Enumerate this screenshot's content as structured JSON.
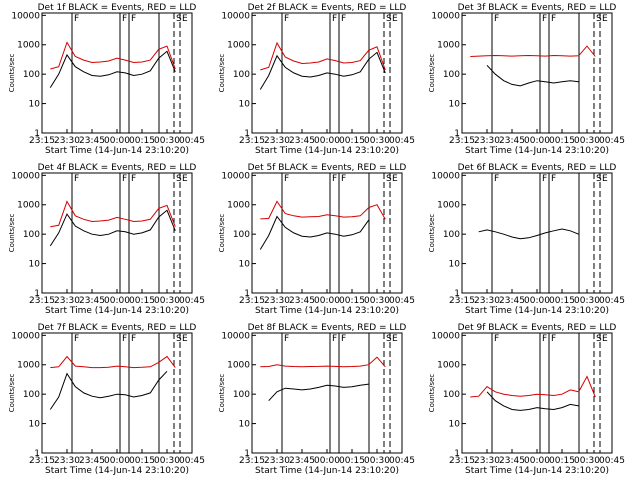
{
  "panel_template": {
    "title_suffix": "BLACK = Events, RED = LLD",
    "ylabel": "Counts/sec",
    "xlabel": "Start Time (14-Jun-14 23:10:20)",
    "y_ticks": [
      "1",
      "10",
      "100",
      "1000",
      "10000"
    ],
    "x_ticks": [
      "23:15",
      "23:30",
      "23:45",
      "00:00",
      "00:15",
      "00:30",
      "00:45"
    ],
    "top_marks": [
      "F",
      "F",
      "F",
      "S",
      "E"
    ]
  },
  "colors": {
    "events": "#000000",
    "lld": "#d40000",
    "axis": "#000000"
  },
  "chart_data": [
    {
      "type": "line",
      "title": "Det 1f BLACK = Events, RED = LLD",
      "x_minutes": [
        5,
        10,
        15,
        20,
        25,
        30,
        35,
        40,
        45,
        50,
        55,
        60,
        65,
        70,
        75,
        80
      ],
      "series": [
        {
          "name": "BLACK = Events",
          "values": [
            35,
            100,
            450,
            180,
            120,
            90,
            85,
            95,
            120,
            110,
            90,
            100,
            130,
            350,
            600,
            120
          ]
        },
        {
          "name": "RED = LLD",
          "values": [
            150,
            180,
            1200,
            400,
            300,
            250,
            260,
            280,
            350,
            300,
            250,
            260,
            300,
            700,
            900,
            150
          ]
        }
      ],
      "ylim": [
        1,
        12000
      ],
      "xlim": [
        0,
        90
      ],
      "log_y": true
    },
    {
      "type": "line",
      "title": "Det 2f BLACK = Events, RED = LLD",
      "x_minutes": [
        5,
        10,
        15,
        20,
        25,
        30,
        35,
        40,
        45,
        50,
        55,
        60,
        65,
        70,
        75,
        80
      ],
      "series": [
        {
          "name": "BLACK = Events",
          "values": [
            30,
            90,
            420,
            170,
            110,
            85,
            80,
            90,
            110,
            100,
            85,
            95,
            120,
            320,
            550,
            110
          ]
        },
        {
          "name": "RED = LLD",
          "values": [
            140,
            170,
            1150,
            380,
            280,
            230,
            240,
            260,
            330,
            290,
            240,
            250,
            290,
            650,
            850,
            140
          ]
        }
      ],
      "ylim": [
        1,
        12000
      ],
      "xlim": [
        0,
        90
      ],
      "log_y": true
    },
    {
      "type": "line",
      "title": "Det 3f BLACK = Events, RED = LLD",
      "x_minutes": [
        5,
        10,
        15,
        20,
        25,
        30,
        35,
        40,
        45,
        50,
        55,
        60,
        65,
        70,
        75,
        80
      ],
      "series": [
        {
          "name": "BLACK = Events",
          "values": [
            null,
            null,
            200,
            100,
            60,
            45,
            40,
            50,
            60,
            55,
            50,
            55,
            60,
            55,
            null,
            null
          ]
        },
        {
          "name": "RED = LLD",
          "values": [
            400,
            410,
            420,
            430,
            420,
            410,
            420,
            430,
            420,
            410,
            430,
            420,
            410,
            420,
            900,
            400
          ]
        }
      ],
      "ylim": [
        1,
        12000
      ],
      "xlim": [
        0,
        90
      ],
      "log_y": true
    },
    {
      "type": "line",
      "title": "Det 4f BLACK = Events, RED = LLD",
      "x_minutes": [
        5,
        10,
        15,
        20,
        25,
        30,
        35,
        40,
        45,
        50,
        55,
        60,
        65,
        70,
        75,
        80
      ],
      "series": [
        {
          "name": "BLACK = Events",
          "values": [
            40,
            110,
            480,
            190,
            130,
            100,
            90,
            100,
            130,
            120,
            100,
            110,
            140,
            380,
            650,
            130
          ]
        },
        {
          "name": "RED = LLD",
          "values": [
            180,
            200,
            1300,
            420,
            320,
            270,
            280,
            300,
            370,
            320,
            270,
            280,
            320,
            750,
            950,
            180
          ]
        }
      ],
      "ylim": [
        1,
        12000
      ],
      "xlim": [
        0,
        90
      ],
      "log_y": true
    },
    {
      "type": "line",
      "title": "Det 5f BLACK = Events, RED = LLD",
      "x_minutes": [
        5,
        10,
        15,
        20,
        25,
        30,
        35,
        40,
        45,
        50,
        55,
        60,
        65,
        70,
        75,
        80
      ],
      "series": [
        {
          "name": "BLACK = Events",
          "values": [
            30,
            90,
            400,
            170,
            110,
            85,
            80,
            90,
            110,
            100,
            85,
            95,
            120,
            300,
            null,
            null
          ]
        },
        {
          "name": "RED = LLD",
          "values": [
            330,
            340,
            1300,
            500,
            420,
            380,
            390,
            400,
            460,
            420,
            380,
            390,
            420,
            800,
            1000,
            320
          ]
        }
      ],
      "ylim": [
        1,
        12000
      ],
      "xlim": [
        0,
        90
      ],
      "log_y": true
    },
    {
      "type": "line",
      "title": "Det 6f BLACK = Events, RED = LLD",
      "x_minutes": [
        5,
        10,
        15,
        20,
        25,
        30,
        35,
        40,
        45,
        50,
        55,
        60,
        65,
        70,
        75,
        80
      ],
      "series": [
        {
          "name": "BLACK = Events",
          "values": [
            null,
            120,
            140,
            120,
            100,
            80,
            70,
            75,
            90,
            110,
            130,
            150,
            130,
            100,
            null,
            null
          ]
        }
      ],
      "ylim": [
        1,
        12000
      ],
      "xlim": [
        0,
        90
      ],
      "log_y": true
    },
    {
      "type": "line",
      "title": "Det 7f BLACK = Events, RED = LLD",
      "x_minutes": [
        5,
        10,
        15,
        20,
        25,
        30,
        35,
        40,
        45,
        50,
        55,
        60,
        65,
        70,
        75,
        80
      ],
      "series": [
        {
          "name": "BLACK = Events",
          "values": [
            30,
            80,
            500,
            180,
            110,
            85,
            75,
            85,
            100,
            95,
            80,
            90,
            110,
            300,
            600,
            null
          ]
        },
        {
          "name": "RED = LLD",
          "values": [
            800,
            850,
            1900,
            900,
            850,
            800,
            800,
            820,
            900,
            850,
            800,
            820,
            850,
            1200,
            1900,
            800
          ]
        }
      ],
      "ylim": [
        1,
        12000
      ],
      "xlim": [
        0,
        90
      ],
      "log_y": true
    },
    {
      "type": "line",
      "title": "Det 8f BLACK = Events, RED = LLD",
      "x_minutes": [
        5,
        10,
        15,
        20,
        25,
        30,
        35,
        40,
        45,
        50,
        55,
        60,
        65,
        70,
        75,
        80
      ],
      "series": [
        {
          "name": "BLACK = Events",
          "values": [
            null,
            60,
            120,
            160,
            150,
            140,
            150,
            170,
            200,
            190,
            170,
            180,
            200,
            220,
            null,
            null
          ]
        },
        {
          "name": "RED = LLD",
          "values": [
            850,
            870,
            1000,
            900,
            870,
            860,
            870,
            880,
            900,
            880,
            860,
            870,
            900,
            1000,
            1800,
            850
          ]
        }
      ],
      "ylim": [
        1,
        12000
      ],
      "xlim": [
        0,
        90
      ],
      "log_y": true
    },
    {
      "type": "line",
      "title": "Det 9f BLACK = Events, RED = LLD",
      "x_minutes": [
        5,
        10,
        15,
        20,
        25,
        30,
        35,
        40,
        45,
        50,
        55,
        60,
        65,
        70,
        75,
        80
      ],
      "series": [
        {
          "name": "BLACK = Events",
          "values": [
            null,
            null,
            120,
            60,
            40,
            30,
            28,
            30,
            35,
            32,
            30,
            35,
            45,
            40,
            null,
            null
          ]
        },
        {
          "name": "RED = LLD",
          "values": [
            80,
            85,
            180,
            120,
            100,
            90,
            85,
            90,
            100,
            95,
            90,
            100,
            140,
            120,
            400,
            80
          ]
        }
      ],
      "ylim": [
        1,
        12000
      ],
      "xlim": [
        0,
        90
      ],
      "log_y": true
    }
  ]
}
